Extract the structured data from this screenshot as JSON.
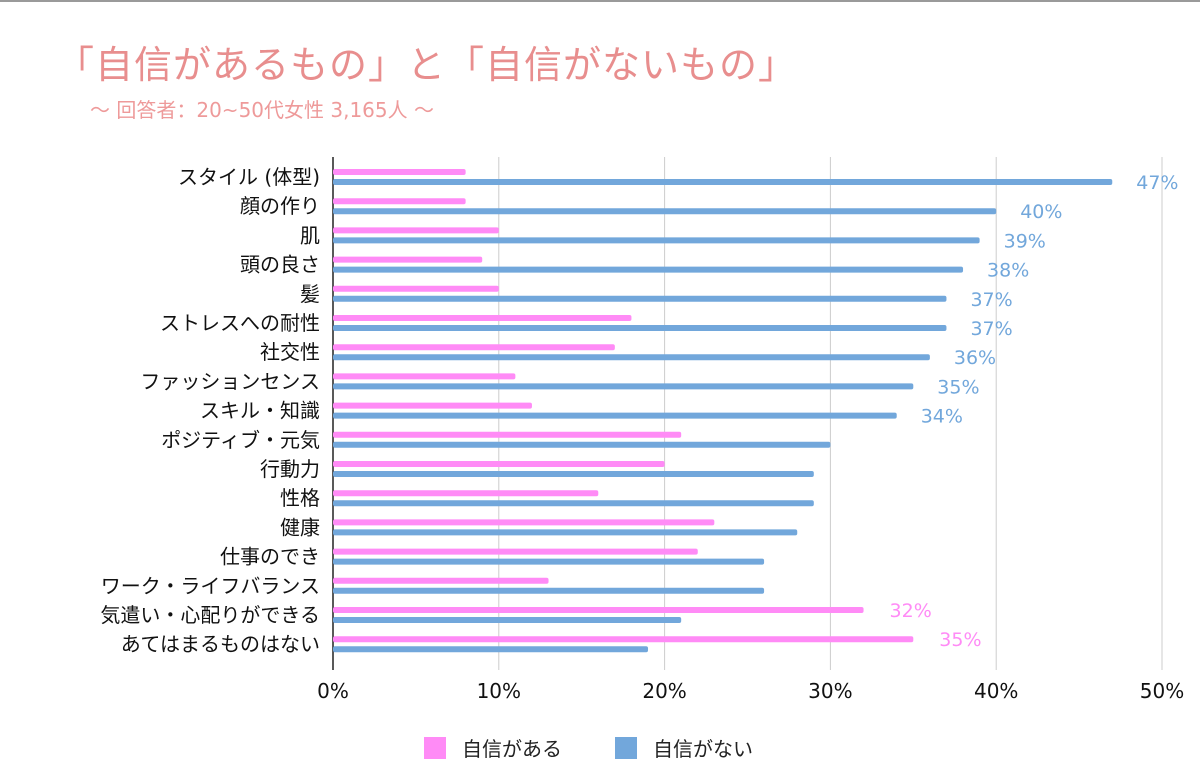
{
  "header": {
    "title": "「自信があるもの」と「自信がないもの」",
    "subtitle": "〜 回答者：20~50代女性 3,165人 〜"
  },
  "colors": {
    "confident": "#ff8bf6",
    "not_confident": "#72a7db",
    "grid": "#cccccc",
    "axis": "#222222"
  },
  "chart_data": {
    "type": "bar",
    "orientation": "horizontal",
    "title": "「自信があるもの」と「自信がないもの」",
    "subtitle": "〜 回答者：20~50代女性 3,165人 〜",
    "categories": [
      "スタイル (体型)",
      "顔の作り",
      "肌",
      "頭の良さ",
      "髪",
      "ストレスへの耐性",
      "社交性",
      "ファッションセンス",
      "スキル・知識",
      "ポジティブ・元気",
      "行動力",
      "性格",
      "健康",
      "仕事のでき",
      "ワーク・ライフバランス",
      "気遣い・心配りができる",
      "あてはまるものはない"
    ],
    "series": [
      {
        "name": "自信がある",
        "values": [
          8,
          8,
          10,
          9,
          10,
          18,
          17,
          11,
          12,
          21,
          20,
          16,
          23,
          22,
          13,
          32,
          35
        ],
        "labels": [
          "",
          "",
          "",
          "",
          "",
          "",
          "",
          "",
          "",
          "",
          "",
          "",
          "",
          "",
          "",
          "32%",
          "35%"
        ]
      },
      {
        "name": "自信がない",
        "values": [
          47,
          40,
          39,
          38,
          37,
          37,
          36,
          35,
          34,
          30,
          29,
          29,
          28,
          26,
          26,
          21,
          19
        ],
        "labels": [
          "47%",
          "40%",
          "39%",
          "38%",
          "37%",
          "37%",
          "36%",
          "35%",
          "34%",
          "",
          "",
          "",
          "",
          "",
          "",
          "",
          ""
        ]
      }
    ],
    "x_ticks": [
      "0%",
      "10%",
      "20%",
      "30%",
      "40%",
      "50%"
    ],
    "xlim": [
      0,
      50
    ],
    "grid": true,
    "legend_position": "bottom-center"
  }
}
